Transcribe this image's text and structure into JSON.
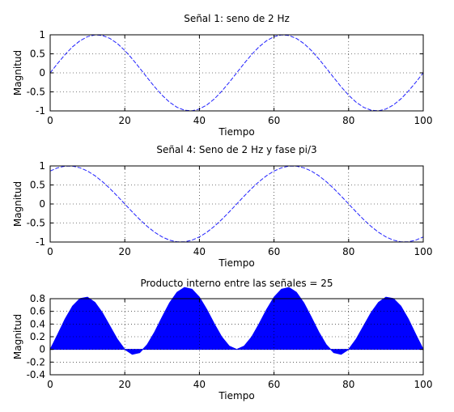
{
  "chart_data": [
    {
      "type": "line",
      "title": "Señal 1: seno de 2 Hz",
      "xlabel": "Tiempo",
      "ylabel": "Magnitud",
      "xlim": [
        0,
        100
      ],
      "ylim": [
        -1,
        1
      ],
      "xticks": [
        0,
        20,
        40,
        60,
        80,
        100
      ],
      "xticklabels": [
        "0",
        "20",
        "40",
        "60",
        "80",
        "100"
      ],
      "yticks": [
        -1,
        -0.5,
        0,
        0.5,
        1
      ],
      "yticklabels": [
        "-1",
        "-0.5",
        "0",
        "0.5",
        "1"
      ],
      "grid": true,
      "color": "#1f1fff",
      "series": [
        {
          "x": [
            0,
            2,
            4,
            6,
            8,
            10,
            12,
            14,
            16,
            18,
            20,
            22,
            24,
            26,
            28,
            30,
            32,
            34,
            36,
            38,
            40,
            42,
            44,
            46,
            48,
            50,
            52,
            54,
            56,
            58,
            60,
            62,
            64,
            66,
            68,
            70,
            72,
            74,
            76,
            78,
            80,
            82,
            84,
            86,
            88,
            90,
            92,
            94,
            96,
            98,
            100
          ],
          "values": [
            0,
            0.248,
            0.482,
            0.685,
            0.844,
            0.951,
            0.998,
            0.982,
            0.905,
            0.771,
            0.588,
            0.368,
            0.125,
            -0.125,
            -0.368,
            -0.588,
            -0.771,
            -0.905,
            -0.982,
            -0.998,
            -0.951,
            -0.844,
            -0.685,
            -0.482,
            -0.248,
            0,
            0.248,
            0.482,
            0.685,
            0.844,
            0.951,
            0.998,
            0.982,
            0.905,
            0.771,
            0.588,
            0.368,
            0.125,
            -0.125,
            -0.368,
            -0.588,
            -0.771,
            -0.905,
            -0.982,
            -0.998,
            -0.951,
            -0.844,
            -0.685,
            -0.482,
            -0.248,
            0
          ]
        }
      ]
    },
    {
      "type": "line",
      "title": "Señal 4: Seno de 2 Hz y fase pi/3",
      "xlabel": "Tiempo",
      "ylabel": "Magnitud",
      "xlim": [
        0,
        100
      ],
      "ylim": [
        -1,
        1
      ],
      "xticks": [
        0,
        20,
        40,
        60,
        80,
        100
      ],
      "xticklabels": [
        "0",
        "20",
        "40",
        "60",
        "80",
        "100"
      ],
      "yticks": [
        -1,
        -0.5,
        0,
        0.5,
        1
      ],
      "yticklabels": [
        "-1",
        "-0.5",
        "0",
        "0.5",
        "1"
      ],
      "grid": true,
      "color": "#1f1fff",
      "series": [
        {
          "x": [
            0,
            2,
            4,
            6,
            8,
            10,
            12,
            14,
            16,
            18,
            20,
            22,
            24,
            26,
            28,
            30,
            32,
            34,
            36,
            38,
            40,
            42,
            44,
            46,
            48,
            50,
            52,
            54,
            56,
            58,
            60,
            62,
            64,
            66,
            68,
            70,
            72,
            74,
            76,
            78,
            80,
            82,
            84,
            86,
            88,
            90,
            92,
            94,
            96,
            98,
            100
          ],
          "values": [
            0.866,
            0.951,
            0.995,
            0.995,
            0.951,
            0.866,
            0.743,
            0.588,
            0.407,
            0.208,
            0,
            -0.208,
            -0.407,
            -0.588,
            -0.743,
            -0.866,
            -0.951,
            -0.995,
            -0.995,
            -0.951,
            -0.866,
            -0.743,
            -0.588,
            -0.407,
            -0.208,
            0,
            0.208,
            0.407,
            0.588,
            0.743,
            0.866,
            0.951,
            0.995,
            0.995,
            0.951,
            0.866,
            0.743,
            0.588,
            0.407,
            0.208,
            0,
            -0.208,
            -0.407,
            -0.588,
            -0.743,
            -0.866,
            -0.951,
            -0.995,
            -0.995,
            -0.951,
            -0.866
          ]
        }
      ]
    },
    {
      "type": "area",
      "title": "Producto interno entre las señales = 25",
      "xlabel": "Tiempo",
      "ylabel": "Magnitud",
      "xlim": [
        0,
        100
      ],
      "ylim": [
        -0.4,
        0.8
      ],
      "xticks": [
        0,
        20,
        40,
        60,
        80,
        100
      ],
      "xticklabels": [
        "0",
        "20",
        "40",
        "60",
        "80",
        "100"
      ],
      "yticks": [
        -0.4,
        -0.2,
        0,
        0.2,
        0.4,
        0.6,
        0.8
      ],
      "yticklabels": [
        "-0.4",
        "-0.2",
        "0",
        "0.2",
        "0.4",
        "0.6",
        "0.8"
      ],
      "grid": true,
      "color": "#0000ff",
      "series": [
        {
          "x": [
            0,
            2,
            4,
            6,
            8,
            10,
            12,
            14,
            16,
            18,
            20,
            22,
            24,
            26,
            28,
            30,
            32,
            34,
            36,
            38,
            40,
            42,
            44,
            46,
            48,
            50,
            52,
            54,
            56,
            58,
            60,
            62,
            64,
            66,
            68,
            70,
            72,
            74,
            76,
            78,
            80,
            82,
            84,
            86,
            88,
            90,
            92,
            94,
            96,
            98,
            100
          ],
          "values": [
            0,
            0.236,
            0.479,
            0.682,
            0.802,
            0.824,
            0.741,
            0.578,
            0.369,
            0.161,
            0,
            -0.077,
            -0.051,
            0.074,
            0.273,
            0.509,
            0.733,
            0.9,
            0.976,
            0.949,
            0.824,
            0.627,
            0.403,
            0.196,
            0.052,
            0,
            0.052,
            0.196,
            0.403,
            0.627,
            0.824,
            0.949,
            0.976,
            0.9,
            0.733,
            0.509,
            0.273,
            0.074,
            -0.051,
            -0.077,
            0,
            0.161,
            0.369,
            0.578,
            0.741,
            0.824,
            0.802,
            0.682,
            0.479,
            0.236,
            0
          ]
        }
      ]
    }
  ]
}
